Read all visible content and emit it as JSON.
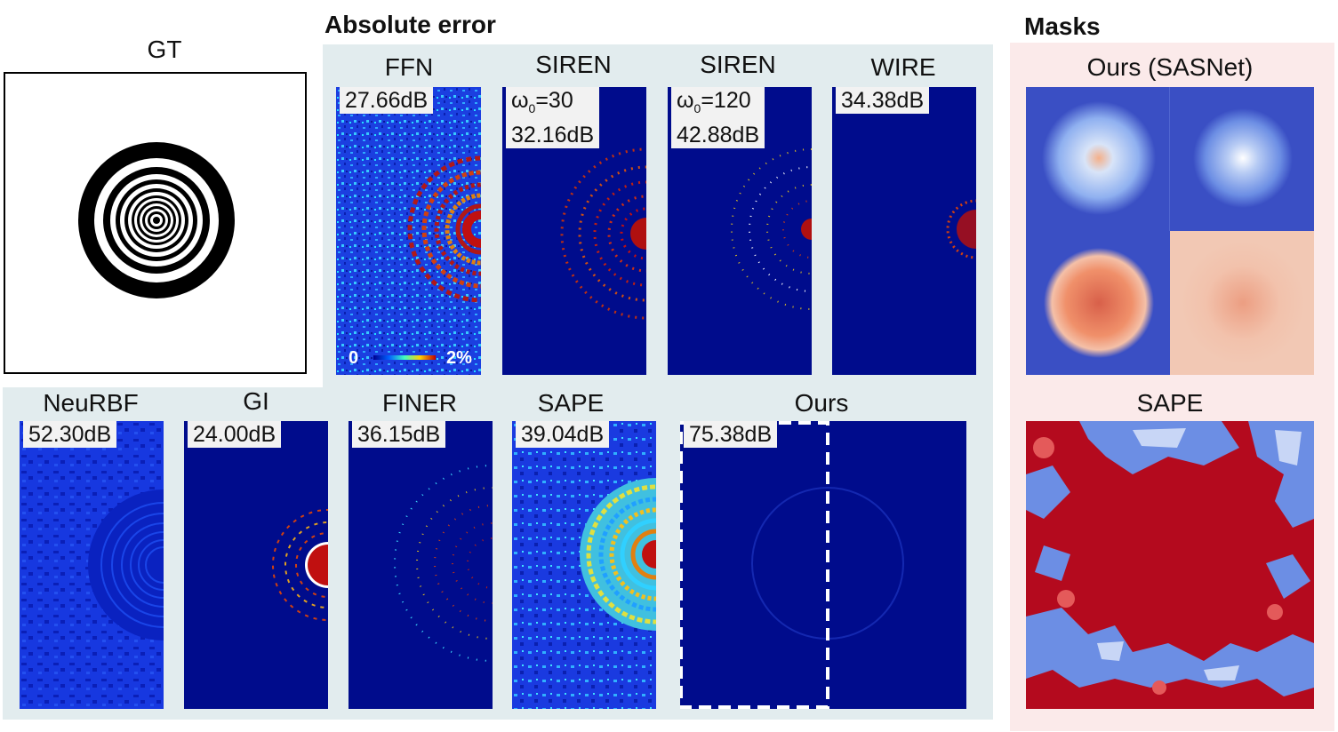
{
  "sections": {
    "abs_error": "Absolute error",
    "masks": "Masks"
  },
  "gt": {
    "label": "GT"
  },
  "top_row": [
    {
      "label": "FFN",
      "psnr": "27.66dB"
    },
    {
      "label": "SIREN",
      "omega": "ω",
      "omega_sub": "0",
      "omega_val": "=30",
      "psnr": "32.16dB"
    },
    {
      "label": "SIREN",
      "omega": "ω",
      "omega_sub": "0",
      "omega_val": "=120",
      "psnr": "42.88dB"
    },
    {
      "label": "WIRE",
      "psnr": "34.38dB"
    }
  ],
  "bottom_row": [
    {
      "label": "NeuRBF",
      "psnr": "52.30dB"
    },
    {
      "label": "GI",
      "psnr": "24.00dB"
    },
    {
      "label": "FINER",
      "psnr": "36.15dB"
    },
    {
      "label": "SAPE",
      "psnr": "39.04dB"
    },
    {
      "label": "Ours",
      "psnr": "75.38dB"
    }
  ],
  "colorbar": {
    "min": "0",
    "max": "2%"
  },
  "masks": {
    "ours_label": "Ours (SASNet)",
    "sape_label": "SAPE"
  },
  "colors": {
    "error_bg": "#000c8c",
    "mask_blue": "#3a4fc4",
    "mask_red": "#b40a1e",
    "panel_err": "#e2ecee",
    "panel_mask": "#fbeaea"
  }
}
